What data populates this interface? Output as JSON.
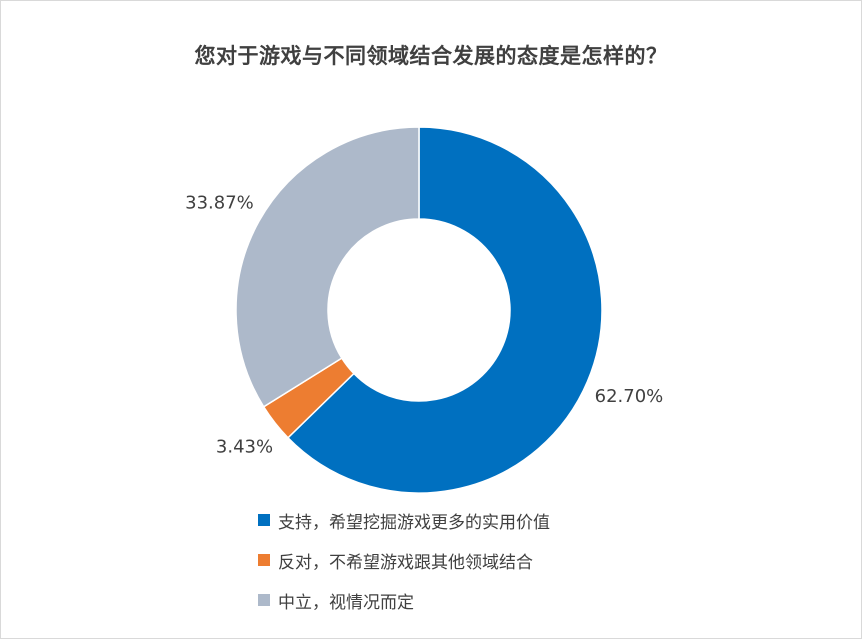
{
  "chart_data": {
    "type": "pie",
    "variant": "donut",
    "title": "您对于游戏与不同领域结合发展的态度是怎样的？",
    "categories": [
      "支持，希望挖掘游戏更多的实用价值",
      "反对，不希望游戏跟其他领域结合",
      "中立，视情况而定"
    ],
    "values": [
      62.7,
      3.43,
      33.87
    ],
    "value_labels": [
      "62.70%",
      "3.43%",
      "33.87%"
    ],
    "colors": [
      "#0070c0",
      "#ed7d31",
      "#adb9ca"
    ],
    "legend": "bottom",
    "grid": false
  }
}
